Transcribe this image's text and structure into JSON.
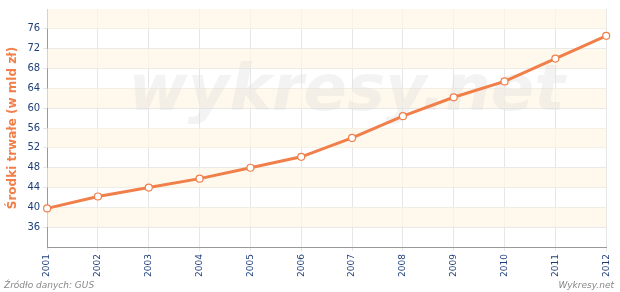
{
  "chart_data": {
    "type": "line",
    "y_label": "Środki trwałe (w mld zł)",
    "categories": [
      "2001",
      "2002",
      "2003",
      "2004",
      "2005",
      "2006",
      "2007",
      "2008",
      "2009",
      "2010",
      "2011",
      "2012"
    ],
    "values": [
      39.8,
      42.2,
      44.0,
      45.8,
      48.0,
      50.2,
      54.0,
      58.4,
      62.2,
      65.4,
      70.0,
      74.6
    ],
    "color": "#f07f4a",
    "marker": "circle",
    "ylim": [
      32,
      80
    ],
    "yticks": [
      36,
      40,
      44,
      48,
      52,
      56,
      60,
      64,
      68,
      72,
      76
    ],
    "grid": true,
    "annotations": [
      "Źródło danych: GUS",
      "Wykresy.net",
      "wykresy.net"
    ]
  }
}
